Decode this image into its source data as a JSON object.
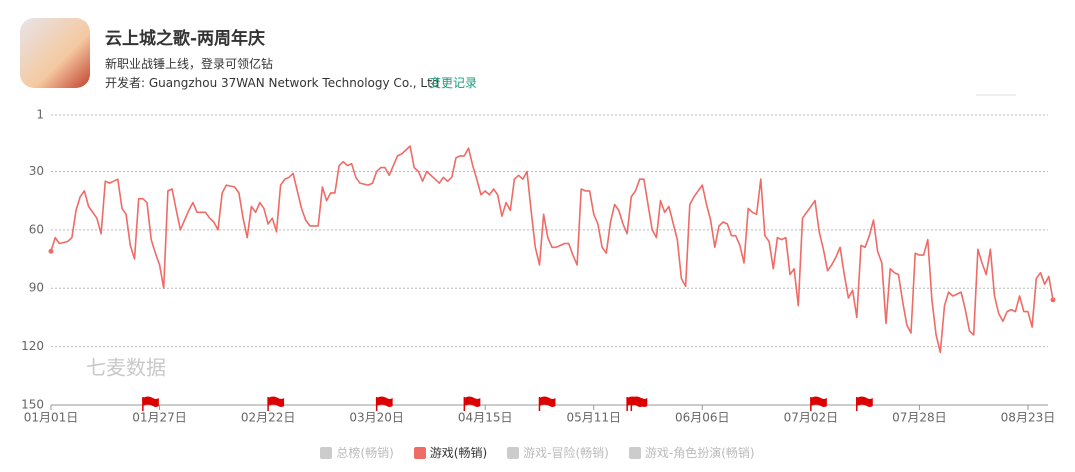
{
  "header": {
    "title": "云上城之歌-两周年庆",
    "subtitle": "新职业战锤上线，登录可领亿钻",
    "developer": "开发者: Guangzhou 37WAN Network Technology Co., Ltd",
    "changelog": "变更记录"
  },
  "chart_data": {
    "type": "line",
    "watermark": "七麦数据",
    "x": [
      0,
      1,
      2,
      4,
      5,
      6,
      7,
      8,
      9,
      11,
      12,
      13,
      14,
      15,
      16,
      17,
      18,
      19,
      20,
      21,
      22,
      23,
      24,
      25,
      26,
      27,
      28,
      29,
      30,
      31,
      32,
      33,
      34,
      35,
      37,
      38,
      39,
      40,
      41,
      42,
      44,
      45,
      46,
      47,
      48,
      49,
      50,
      51,
      52,
      53,
      54,
      55,
      56,
      57,
      58,
      60,
      61,
      62,
      64,
      65,
      66,
      67,
      68,
      69,
      70,
      71,
      72,
      73,
      74,
      76,
      77,
      78,
      79,
      80,
      81,
      83,
      84,
      85,
      86,
      87,
      88,
      89,
      90,
      91,
      92,
      93,
      94,
      95,
      96,
      97,
      98,
      99,
      100,
      101,
      102,
      103,
      104,
      105,
      106,
      107,
      108,
      109,
      110,
      111,
      112,
      113,
      114,
      115,
      116,
      117,
      118,
      119,
      120,
      121,
      123,
      124,
      125,
      126,
      127,
      128,
      129,
      130,
      131,
      132,
      133,
      134,
      135,
      136,
      137,
      138,
      139,
      140,
      141,
      142,
      143,
      144,
      145,
      146,
      147,
      148,
      150,
      151,
      152,
      153,
      154,
      155,
      156,
      157,
      158,
      159,
      160,
      161,
      162,
      163,
      164,
      165,
      166,
      167,
      168,
      169,
      170,
      171,
      172,
      173,
      174,
      175,
      176,
      177,
      178,
      179,
      180,
      181,
      182,
      183,
      184,
      185,
      186,
      187,
      188,
      189,
      190,
      191,
      192,
      193,
      194,
      195,
      196,
      197,
      198,
      199,
      200,
      201,
      202,
      203,
      204,
      205,
      206,
      207,
      208,
      209,
      210,
      211,
      212,
      213,
      214,
      215,
      216,
      217,
      218,
      219,
      220,
      221,
      222,
      223,
      224,
      225,
      226,
      227,
      228,
      229,
      230,
      231,
      232,
      233,
      234,
      235,
      236,
      237,
      238,
      239,
      240
    ],
    "series": [
      {
        "name": "总榜(畅销)",
        "color": "#cccccc",
        "visible": false
      },
      {
        "name": "游戏(畅销)",
        "color": "#ee6b66",
        "visible": true,
        "values": [
          71,
          64,
          67,
          66,
          64,
          50,
          43,
          40,
          48,
          54,
          62,
          35,
          36,
          35,
          34,
          49,
          52,
          68,
          75,
          44,
          44,
          46,
          65,
          72,
          78,
          90,
          40,
          39,
          50,
          60,
          55,
          50,
          46,
          51,
          51,
          54,
          56,
          60,
          41,
          37,
          38,
          41,
          54,
          64,
          48,
          51,
          46,
          49,
          57,
          54,
          61,
          37,
          34,
          33,
          31,
          49,
          55,
          58,
          58,
          38,
          45,
          41,
          41,
          27,
          25,
          27,
          26,
          33,
          36,
          37,
          36,
          30,
          28,
          28,
          32,
          22,
          21,
          19,
          17,
          28,
          30,
          35,
          30,
          32,
          34,
          36,
          33,
          35,
          33,
          23,
          22,
          22,
          18,
          27,
          34,
          42,
          40,
          42,
          39,
          42,
          53,
          46,
          50,
          34,
          32,
          34,
          30,
          50,
          69,
          78,
          52,
          64,
          69,
          69,
          67,
          67,
          73,
          78,
          39,
          40,
          40,
          52,
          57,
          69,
          72,
          56,
          47,
          50,
          57,
          62,
          43,
          40,
          34,
          34,
          47,
          60,
          64,
          45,
          51,
          48,
          65,
          85,
          89,
          47,
          43,
          40,
          37,
          47,
          55,
          69,
          58,
          56,
          57,
          63,
          63,
          68,
          77,
          49,
          51,
          52,
          34,
          63,
          66,
          80,
          64,
          65,
          64,
          83,
          80,
          99,
          54,
          51,
          48,
          45,
          61,
          70,
          81,
          78,
          74,
          69,
          83,
          95,
          91,
          105,
          68,
          69,
          63,
          55,
          71,
          77,
          108,
          80,
          82,
          83,
          97,
          109,
          113,
          72,
          73,
          73,
          65,
          96,
          114,
          123,
          99,
          92,
          94,
          93,
          92,
          101,
          112,
          114,
          70,
          77,
          83,
          70,
          94,
          103,
          107,
          102,
          101,
          102,
          94,
          102,
          102,
          110,
          85,
          82,
          88,
          84,
          96
        ]
      },
      {
        "name": "游戏-冒险(畅销)",
        "color": "#cccccc",
        "visible": false
      },
      {
        "name": "游戏-角色扮演(畅销)",
        "color": "#cccccc",
        "visible": false
      }
    ],
    "xlim": [
      0,
      240
    ],
    "xticks": [
      {
        "value": 0,
        "label": "01月01日"
      },
      {
        "value": 26,
        "label": "01月27日"
      },
      {
        "value": 52,
        "label": "02月22日"
      },
      {
        "value": 78,
        "label": "03月20日"
      },
      {
        "value": 104,
        "label": "04月15日"
      },
      {
        "value": 130,
        "label": "05月11日"
      },
      {
        "value": 156,
        "label": "06月06日"
      },
      {
        "value": 182,
        "label": "07月02日"
      },
      {
        "value": 208,
        "label": "07月28日"
      },
      {
        "value": 234,
        "label": "08月23日"
      }
    ],
    "ylim": [
      1,
      150
    ],
    "y_inverted": true,
    "yticks": [
      1,
      30,
      60,
      90,
      120,
      150
    ],
    "grid": true,
    "event_flags": [
      22,
      52,
      78,
      99,
      117,
      138,
      139,
      182,
      193
    ],
    "flag_color": "#dd0000"
  }
}
